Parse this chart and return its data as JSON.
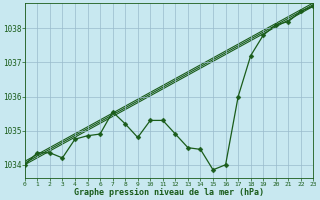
{
  "title": "Graphe pression niveau de la mer (hPa)",
  "background_color": "#c8e8f0",
  "plot_bg_color": "#c8e8f0",
  "grid_color": "#99bbcc",
  "line_color": "#1a5c1a",
  "xlim": [
    0,
    23
  ],
  "ylim": [
    1033.6,
    1038.75
  ],
  "yticks": [
    1034,
    1035,
    1036,
    1037,
    1038
  ],
  "xticks": [
    0,
    1,
    2,
    3,
    4,
    5,
    6,
    7,
    8,
    9,
    10,
    11,
    12,
    13,
    14,
    15,
    16,
    17,
    18,
    19,
    20,
    21,
    22,
    23
  ],
  "main_series": {
    "x": [
      0,
      1,
      2,
      3,
      4,
      5,
      6,
      7,
      8,
      9,
      10,
      11,
      12,
      13,
      14,
      15,
      16,
      17,
      18,
      19,
      20,
      21,
      22,
      23
    ],
    "y": [
      1034.0,
      1034.35,
      1034.35,
      1034.2,
      1034.75,
      1034.85,
      1034.9,
      1035.55,
      1035.2,
      1034.8,
      1035.3,
      1035.3,
      1034.9,
      1034.5,
      1034.45,
      1033.85,
      1034.0,
      1036.0,
      1037.2,
      1037.8,
      1038.1,
      1038.2,
      1038.5,
      1038.65
    ],
    "marker": "D",
    "markersize": 2.5,
    "linewidth": 0.9
  },
  "trend_lines": [
    {
      "x": [
        0,
        23
      ],
      "y": [
        1034.0,
        1038.65
      ]
    },
    {
      "x": [
        0,
        23
      ],
      "y": [
        1034.0,
        1038.65
      ]
    },
    {
      "x": [
        0,
        23
      ],
      "y": [
        1034.0,
        1038.65
      ]
    }
  ],
  "xlabel_fontsize": 6.0,
  "ytick_fontsize": 5.5,
  "xtick_fontsize": 4.5
}
